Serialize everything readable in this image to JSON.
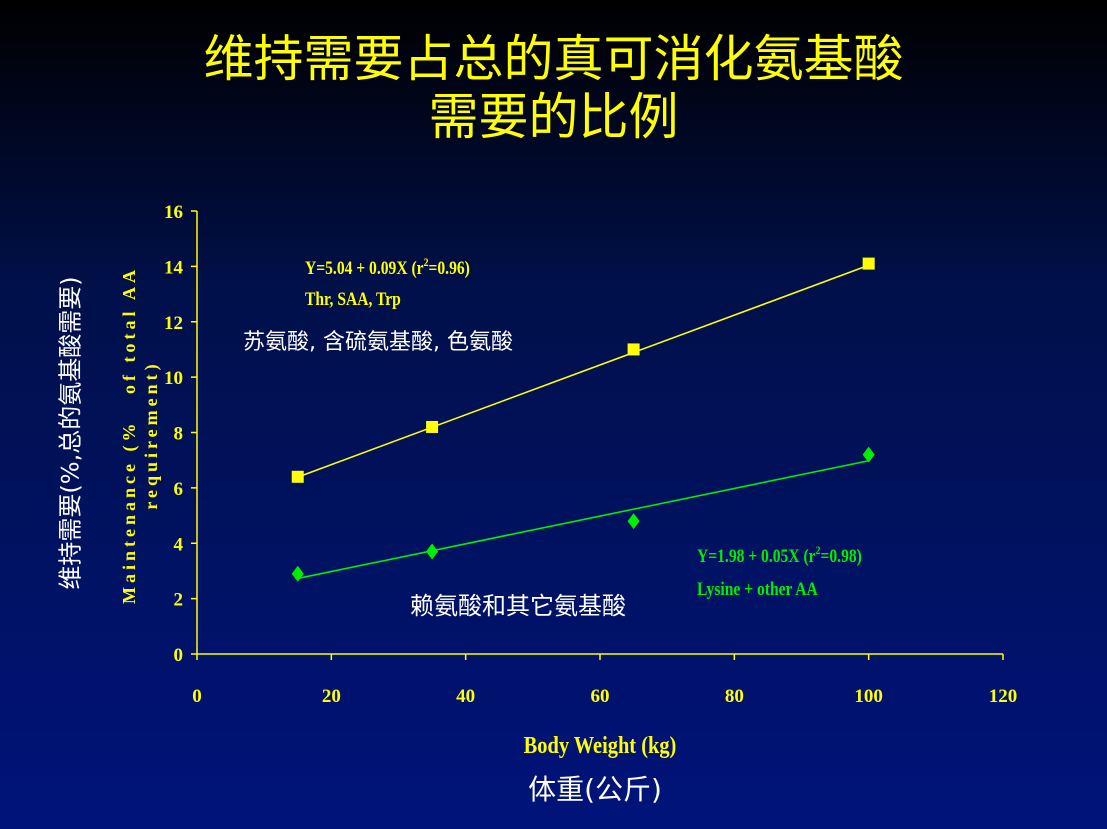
{
  "slide": {
    "title_line1": "维持需要占总的真可消化氨基酸",
    "title_line2": "需要的比例",
    "ylabel_cn": "维持需要(%,总的氨基酸需要)",
    "ylabel_en": "Maintenance (%   of total AA\nrequirement)",
    "xlabel_en": "Body Weight (kg)",
    "xlabel_cn": "体重(公斤)"
  },
  "annotations": {
    "series1_eq_pre": "Y=5.04 + 0.09X  (r",
    "series1_eq_sup": "2",
    "series1_eq_post": "=0.96)",
    "series1_name_en": "Thr, SAA, Trp",
    "series1_name_cn": "苏氨酸, 含硫氨基酸, 色氨酸",
    "series2_eq_pre": "Y=1.98 + 0.05X  (r",
    "series2_eq_sup": "2",
    "series2_eq_post": "=0.98)",
    "series2_name_en": "Lysine + other AA",
    "series2_name_cn": "赖氨酸和其它氨基酸"
  },
  "colors": {
    "axis": "#ffff00",
    "series1": "#ffff00",
    "series2": "#00ee00",
    "label_white": "#ffffff"
  },
  "chart_data": {
    "type": "scatter",
    "xlabel": "Body Weight (kg)",
    "ylabel": "Maintenance (%   of total AA requirement)",
    "xlim": [
      0,
      120
    ],
    "ylim": [
      0,
      16
    ],
    "xticks": [
      0,
      20,
      40,
      60,
      80,
      100,
      120
    ],
    "yticks": [
      0,
      2,
      4,
      6,
      8,
      10,
      12,
      14,
      16
    ],
    "grid": false,
    "series": [
      {
        "name": "Thr, SAA, Trp",
        "marker": "square",
        "color": "#ffff00",
        "x": [
          15,
          35,
          65,
          100
        ],
        "y": [
          6.4,
          8.2,
          11.0,
          14.1
        ],
        "trendline": {
          "intercept": 5.04,
          "slope": 0.09,
          "r2": 0.96
        }
      },
      {
        "name": "Lysine + other AA",
        "marker": "diamond",
        "color": "#00ee00",
        "x": [
          15,
          35,
          65,
          100
        ],
        "y": [
          2.9,
          3.7,
          4.8,
          7.2
        ],
        "trendline": {
          "intercept": 1.98,
          "slope": 0.05,
          "r2": 0.98
        }
      }
    ]
  }
}
